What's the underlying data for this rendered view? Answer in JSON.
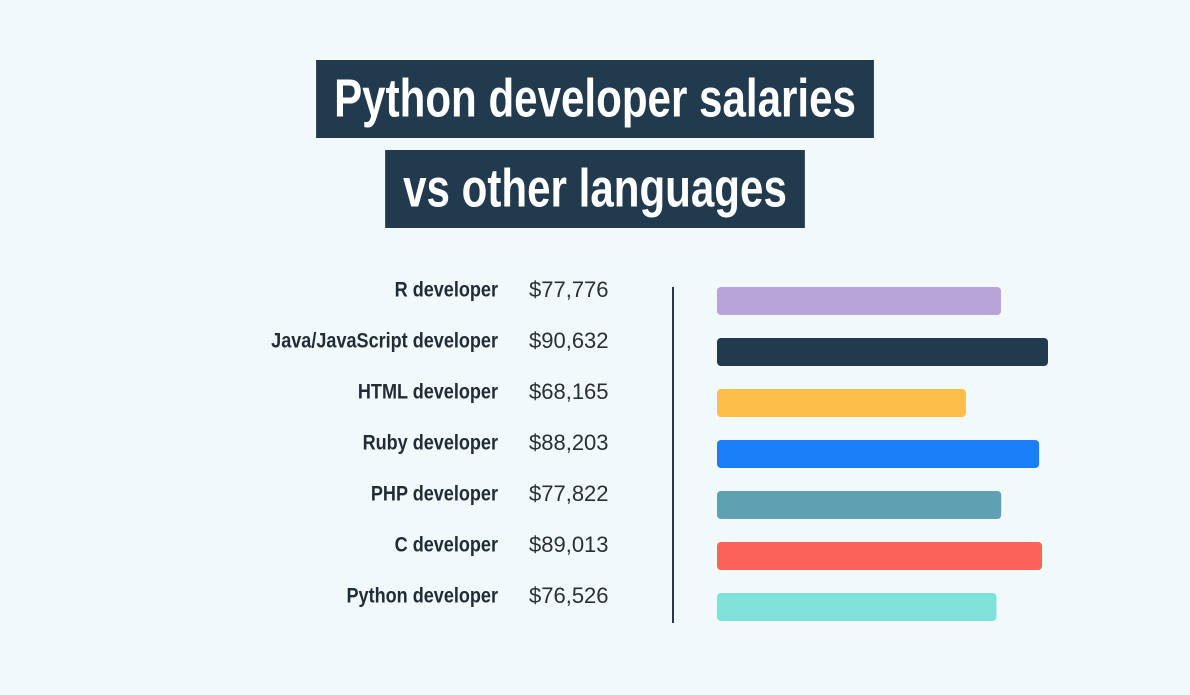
{
  "chart_data": {
    "type": "bar",
    "title": [
      "Python developer salaries",
      "vs other languages"
    ],
    "categories": [
      "R developer",
      "Java/JavaScript developer",
      "HTML developer",
      "Ruby developer",
      "PHP developer",
      "C developer",
      "Python developer"
    ],
    "values": [
      77776,
      90632,
      68165,
      88203,
      77822,
      89013,
      76526
    ],
    "value_labels": [
      "$77,776",
      "$90,632",
      "$68,165",
      "$88,203",
      "$77,822",
      "$89,013",
      "$76,526"
    ],
    "colors": [
      "#b9a4da",
      "#223a4e",
      "#fdbe4a",
      "#1a7ff7",
      "#5fa1b3",
      "#fa625a",
      "#80e1d9"
    ]
  }
}
